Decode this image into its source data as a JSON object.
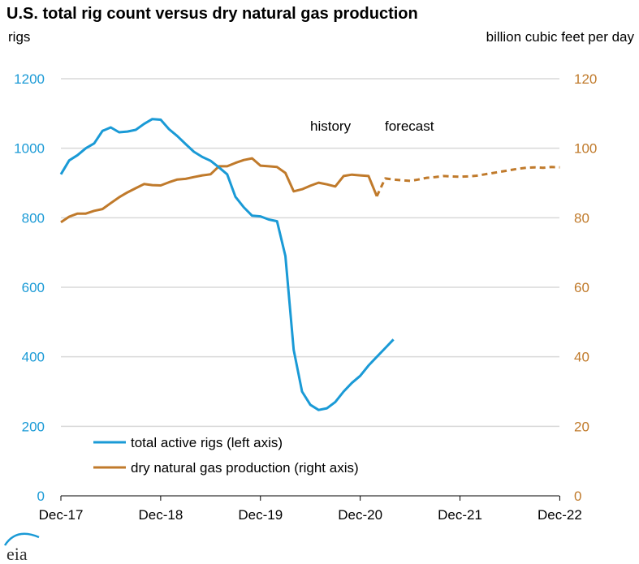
{
  "chart_data": {
    "type": "line",
    "title": "U.S. total rig count versus dry natural gas production",
    "ylabel_left": "rigs",
    "ylabel_right": "billion cubic feet per day",
    "ylim_left": [
      0,
      1200
    ],
    "ylim_right": [
      0,
      120
    ],
    "yticks_left": [
      "0",
      "200",
      "400",
      "600",
      "800",
      "1000",
      "1200"
    ],
    "yticks_right": [
      "0",
      "20",
      "40",
      "60",
      "80",
      "100",
      "120"
    ],
    "xticks": [
      "Dec-17",
      "Dec-18",
      "Dec-19",
      "Dec-20",
      "Dec-21",
      "Dec-22"
    ],
    "grid": true,
    "annotations": [
      "history",
      "forecast"
    ],
    "legend_placement": "bottom-left",
    "colors": {
      "rigs": "#1a9ad6",
      "gas": "#c07a2b",
      "grid": "#d9d9d9"
    },
    "series": [
      {
        "name": "total active rigs (left axis)",
        "axis": "left",
        "start": "2017-12",
        "values": [
          925,
          965,
          980,
          1000,
          1014,
          1050,
          1060,
          1046,
          1048,
          1053,
          1070,
          1084,
          1082,
          1055,
          1035,
          1012,
          990,
          975,
          964,
          945,
          925,
          860,
          830,
          806,
          804,
          795,
          790,
          690,
          420,
          300,
          262,
          247,
          252,
          270,
          300,
          325,
          345,
          375,
          400,
          425,
          450
        ]
      },
      {
        "name": "dry natural gas production (right axis)",
        "axis": "right",
        "start": "2017-12",
        "values": [
          78.7,
          80.3,
          81.2,
          81.2,
          82,
          82.5,
          84.2,
          85.9,
          87.3,
          88.5,
          89.7,
          89.4,
          89.3,
          90.2,
          91,
          91.2,
          91.7,
          92.2,
          92.5,
          94.8,
          94.8,
          95.8,
          96.6,
          97.1,
          95,
          94.8,
          94.6,
          92.9,
          87.6,
          88.2,
          89.2,
          90.1,
          89.6,
          89,
          92,
          92.4,
          92.2,
          92,
          86.2
        ],
        "forecast_start": "2021-02",
        "forecast_values": [
          86.2,
          91.3,
          91,
          90.8,
          90.6,
          91,
          91.5,
          91.7,
          92,
          91.9,
          91.8,
          91.9,
          92.1,
          92.5,
          92.9,
          93.3,
          93.7,
          94.1,
          94.4,
          94.5,
          94.4,
          94.6,
          94.5
        ]
      }
    ]
  },
  "logo": "eia"
}
